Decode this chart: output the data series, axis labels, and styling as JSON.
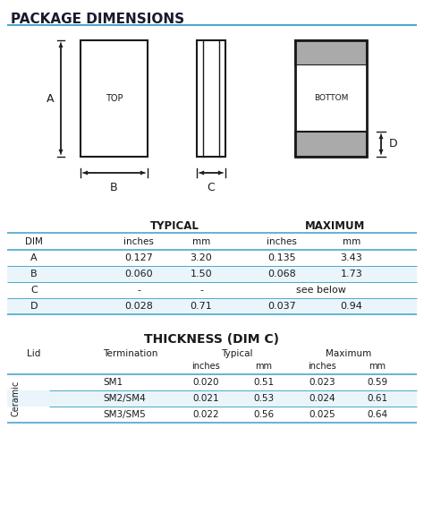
{
  "title": "PACKAGE DIMENSIONS",
  "title2": "THICKNESS (DIM C)",
  "bg_color": "#ffffff",
  "line_color": "#4da6cc",
  "dim_table": {
    "headers": [
      "DIM",
      "inches",
      "mm",
      "inches",
      "mm"
    ],
    "typical_header": "TYPICAL",
    "maximum_header": "MAXIMUM",
    "rows": [
      [
        "A",
        "0.127",
        "3.20",
        "0.135",
        "3.43"
      ],
      [
        "B",
        "0.060",
        "1.50",
        "0.068",
        "1.73"
      ],
      [
        "C",
        "-",
        "-",
        "see below",
        ""
      ],
      [
        "D",
        "0.028",
        "0.71",
        "0.037",
        "0.94"
      ]
    ]
  },
  "thick_table": {
    "typical_header": "Typical",
    "maximum_header": "Maximum",
    "lid_header": "Lid",
    "term_header": "Termination",
    "ceramic_label": "Ceramic",
    "rows": [
      [
        "SM1",
        "0.020",
        "0.51",
        "0.023",
        "0.59"
      ],
      [
        "SM2/SM4",
        "0.021",
        "0.53",
        "0.024",
        "0.61"
      ],
      [
        "SM3/SM5",
        "0.022",
        "0.56",
        "0.025",
        "0.64"
      ]
    ]
  }
}
